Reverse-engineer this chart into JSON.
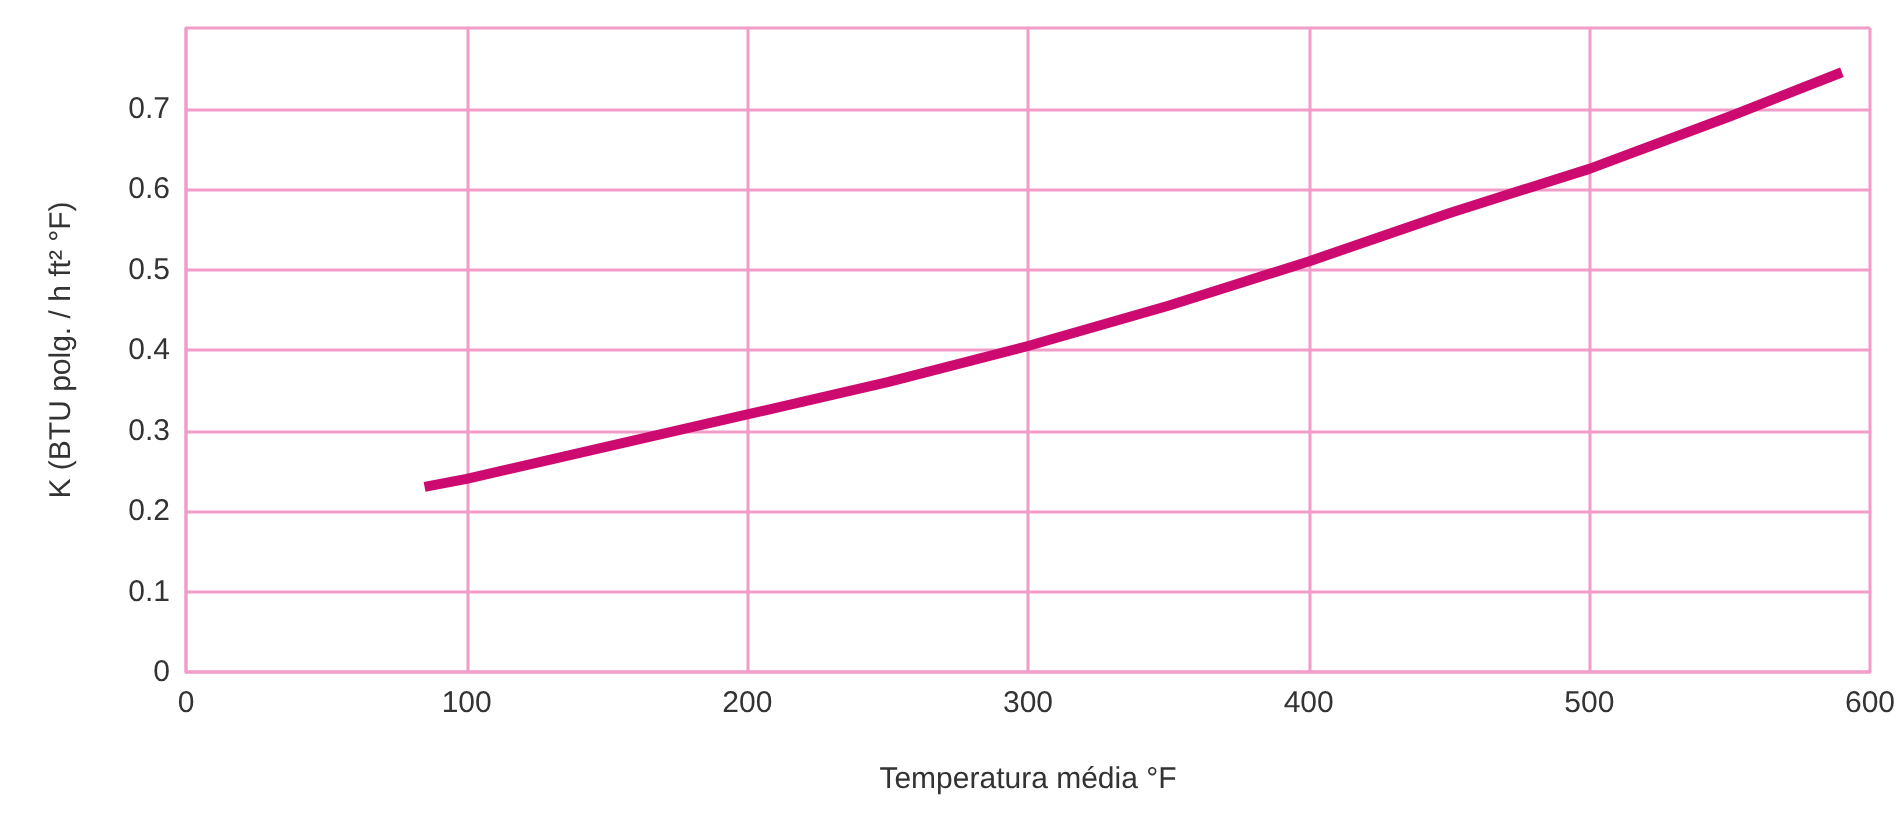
{
  "chart_data": {
    "type": "line",
    "xlabel": "Temperatura média °F",
    "ylabel": "K (BTU polg. / h ft² °F)",
    "x": [
      85,
      100,
      150,
      200,
      250,
      300,
      350,
      400,
      450,
      500,
      550,
      590
    ],
    "series": [
      {
        "color": "#cc0a70",
        "values": [
          0.23,
          0.24,
          0.28,
          0.32,
          0.36,
          0.405,
          0.455,
          0.51,
          0.57,
          0.625,
          0.69,
          0.745
        ]
      }
    ],
    "xlim": [
      0,
      600
    ],
    "xticks": [
      0,
      100,
      200,
      300,
      400,
      500,
      600
    ],
    "ylim": [
      0,
      0.8
    ],
    "yticks": [
      0,
      0.1,
      0.2,
      0.3,
      0.4,
      0.5,
      0.6,
      0.7,
      {
        "value": 0.8,
        "label": null
      }
    ],
    "grid": true,
    "marker": "none",
    "line_style": "solid"
  }
}
